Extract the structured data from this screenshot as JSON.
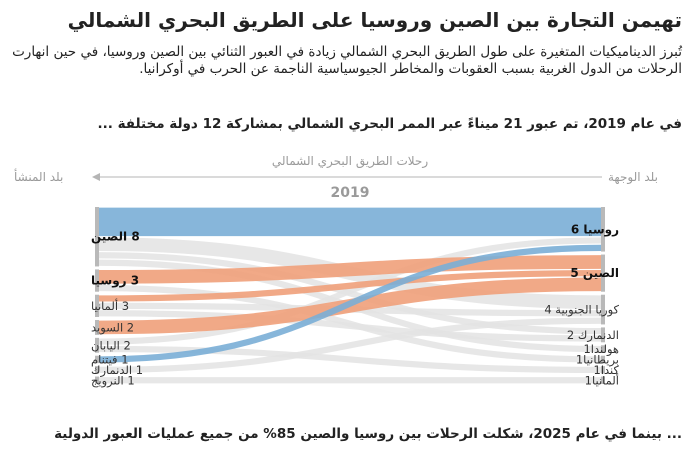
{
  "title": "تهيمن التجارة بين الصين وروسيا على الطريق البحري الشمالي",
  "subtitle": "تُبرز الديناميكيات المتغيرة على طول الطريق البحري الشمالي زيادة في العبور الثنائي بين الصين وروسيا، في حين انهارت الرحلات من الدول الغربية بسبب العقوبات والمخاطر الجيوسياسية الناجمة عن الحرب في أوكرانيا.",
  "lead": "في عام 2019، تم عبور 21 ميناءً عبر الممر البحري الشمالي بمشاركة 12 دولة مختلفة ...",
  "footer": "... بينما في عام 2025، شكلت الرحلات بين روسيا والصين 85% من جميع عمليات العبور الدولية",
  "colors": {
    "china": "#7aaed6",
    "russia": "#f0a07a",
    "other": "#e3e3e3",
    "axis": "#b5b5b5"
  },
  "chart_data": {
    "type": "sankey",
    "title": "رحلات الطريق البحري الشمالي",
    "year": "2019",
    "left_header": "بلد المنشأ",
    "right_header": "بلد الوجهة",
    "origins": [
      {
        "name": "الصين",
        "value": 8,
        "label": "8 الصين",
        "bold": true
      },
      {
        "name": "روسيا",
        "value": 3,
        "label": "3 روسيا",
        "bold": true
      },
      {
        "name": "ألمانيا",
        "value": 3,
        "label": "3 ألمانيا",
        "bold": false
      },
      {
        "name": "السويد",
        "value": 2,
        "label": "2 السويد",
        "bold": false
      },
      {
        "name": "اليابان",
        "value": 2,
        "label": "2 اليابان",
        "bold": false
      },
      {
        "name": "فيتنام",
        "value": 1,
        "label": "1 فيتنام",
        "bold": false
      },
      {
        "name": "الدنمارك",
        "value": 1,
        "label": "1 الدنمارك",
        "bold": false
      },
      {
        "name": "النرويج",
        "value": 1,
        "label": "1 النرويج",
        "bold": false
      }
    ],
    "destinations": [
      {
        "name": "روسيا",
        "value": 6,
        "label": "روسيا 6",
        "bold": true
      },
      {
        "name": "الصين",
        "value": 5,
        "label": "الصين 5",
        "bold": true
      },
      {
        "name": "كوريا الجنوبية",
        "value": 4,
        "label": "كوريا الجنوبية 4",
        "bold": false
      },
      {
        "name": "الدنمارك",
        "value": 2,
        "label": "الدنمارك 2",
        "bold": false
      },
      {
        "name": "هولندا",
        "value": 1,
        "label": "هولندا1",
        "bold": false
      },
      {
        "name": "بريطانيا",
        "value": 1,
        "label": "بريطانيا1",
        "bold": false
      },
      {
        "name": "كندا",
        "value": 1,
        "label": "كندا1",
        "bold": false
      },
      {
        "name": "ألمانيا",
        "value": 1,
        "label": "ألمانيا1",
        "bold": false
      }
    ],
    "flows": [
      {
        "from": "الصين",
        "to": "روسيا",
        "value": 4,
        "group": "china"
      },
      {
        "from": "الصين",
        "to": "كوريا الجنوبية",
        "value": 2,
        "group": "other"
      },
      {
        "from": "الصين",
        "to": "الدنمارك",
        "value": 1,
        "group": "other"
      },
      {
        "from": "الصين",
        "to": "هولندا",
        "value": 1,
        "group": "other"
      },
      {
        "from": "روسيا",
        "to": "الصين",
        "value": 2,
        "group": "russia"
      },
      {
        "from": "روسيا",
        "to": "بريطانيا",
        "value": 1,
        "group": "other"
      },
      {
        "from": "ألمانيا",
        "to": "الصين",
        "value": 1,
        "group": "russia"
      },
      {
        "from": "ألمانيا",
        "to": "كوريا الجنوبية",
        "value": 1,
        "group": "other"
      },
      {
        "from": "ألمانيا",
        "to": "الدنمارك",
        "value": 1,
        "group": "other"
      },
      {
        "from": "السويد",
        "to": "الصين",
        "value": 2,
        "group": "russia"
      },
      {
        "from": "اليابان",
        "to": "روسيا",
        "value": 1,
        "group": "other"
      },
      {
        "from": "اليابان",
        "to": "كندا",
        "value": 1,
        "group": "other"
      },
      {
        "from": "فيتنام",
        "to": "روسيا",
        "value": 1,
        "group": "china"
      },
      {
        "from": "الدنمارك",
        "to": "كوريا الجنوبية",
        "value": 1,
        "group": "other"
      },
      {
        "from": "النرويج",
        "to": "ألمانيا",
        "value": 1,
        "group": "other"
      }
    ]
  }
}
